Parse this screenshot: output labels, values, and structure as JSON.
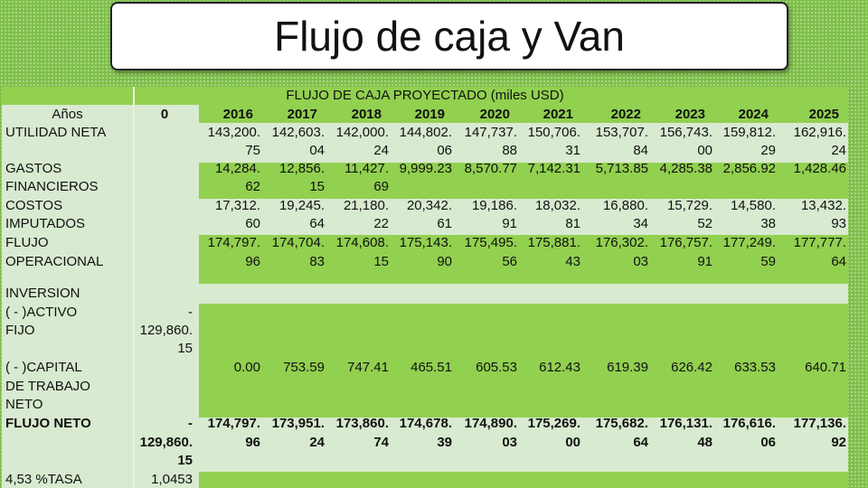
{
  "title": "Flujo de caja y Van",
  "table": {
    "caption": "FLUJO DE CAJA PROYECTADO (miles USD)",
    "col_label": "Años",
    "year0": "0",
    "years": [
      "2016",
      "2017",
      "2018",
      "2019",
      "2020",
      "2021",
      "2022",
      "2023",
      "2024",
      "2025"
    ],
    "utilidad": {
      "label": "UTILIDAD NETA",
      "v1": [
        "143,200.",
        "142,603.",
        "142,000.",
        "144,802.",
        "147,737.",
        "150,706.",
        "153,707.",
        "156,743.",
        "159,812.",
        "162,916."
      ],
      "v2": [
        "75",
        "04",
        "24",
        "06",
        "88",
        "31",
        "84",
        "00",
        "29",
        "24"
      ]
    },
    "gastos": {
      "label1": "GASTOS",
      "label2": "FINANCIEROS",
      "v1": [
        "14,284.",
        "12,856.",
        "11,427.",
        "9,999.23",
        "8,570.77",
        "7,142.31",
        "5,713.85",
        "4,285.38",
        "2,856.92",
        "1,428.46"
      ],
      "v2": [
        "62",
        "15",
        "69",
        "",
        "",
        "",
        "",
        "",
        "",
        ""
      ]
    },
    "costos": {
      "label1": "COSTOS",
      "label2": "IMPUTADOS",
      "v1": [
        "17,312.",
        "19,245.",
        "21,180.",
        "20,342.",
        "19,186.",
        "18,032.",
        "16,880.",
        "15,729.",
        "14,580.",
        "13,432."
      ],
      "v2": [
        "60",
        "64",
        "22",
        "61",
        "91",
        "81",
        "34",
        "52",
        "38",
        "93"
      ]
    },
    "flujo_op": {
      "label1": "FLUJO",
      "label2": "OPERACIONAL",
      "v1": [
        "174,797.",
        "174,704.",
        "174,608.",
        "175,143.",
        "175,495.",
        "175,881.",
        "176,302.",
        "176,757.",
        "177,249.",
        "177,777."
      ],
      "v2": [
        "96",
        "83",
        "15",
        "90",
        "56",
        "43",
        "03",
        "91",
        "59",
        "64"
      ]
    },
    "inversion": {
      "label": "INVERSION",
      "activo_label1": "( - )ACTIVO",
      "activo_label2": "FIJO",
      "activo_v": [
        "-",
        "129,860.",
        "15"
      ]
    },
    "capital": {
      "label1": "( - )CAPITAL",
      "label2": "DE TRABAJO",
      "label3": "NETO",
      "values": [
        "0.00",
        "753.59",
        "747.41",
        "465.51",
        "605.53",
        "612.43",
        "619.39",
        "626.42",
        "633.53",
        "640.71"
      ]
    },
    "flujo_neto": {
      "label": "FLUJO NETO",
      "z": [
        "-",
        "129,860.",
        "15"
      ],
      "v1": [
        "174,797.",
        "173,951.",
        "173,860.",
        "174,678.",
        "174,890.",
        "175,269.",
        "175,682.",
        "176,131.",
        "176,616.",
        "177,136."
      ],
      "v2": [
        "96",
        "24",
        "74",
        "39",
        "03",
        "00",
        "64",
        "48",
        "06",
        "92"
      ]
    },
    "tasa": {
      "label": "4,53 %TASA",
      "z": "1,0453"
    }
  }
}
